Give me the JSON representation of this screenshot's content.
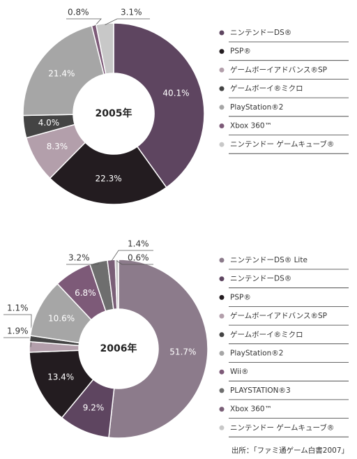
{
  "chart_data": [
    {
      "type": "pie",
      "title": "2005年",
      "categories": [
        "ニンテンドーDS®",
        "PSP®",
        "ゲームボーイアドバンス®SP",
        "ゲームボーイ®ミクロ",
        "PlayStation®2",
        "Xbox 360™",
        "ニンテンドー ゲームキューブ®"
      ],
      "values": [
        40.1,
        22.3,
        8.3,
        4.0,
        21.4,
        0.8,
        3.1
      ],
      "value_labels": [
        "40.1%",
        "22.3%",
        "8.3%",
        "4.0%",
        "21.4%",
        "0.8%",
        "3.1%"
      ],
      "colors": [
        "#5e4560",
        "#231c20",
        "#b39fab",
        "#444444",
        "#a6a6a6",
        "#7d5a78",
        "#c8c8c8"
      ]
    },
    {
      "type": "pie",
      "title": "2006年",
      "categories": [
        "ニンテンドーDS® Lite",
        "ニンテンドーDS®",
        "PSP®",
        "ゲームボーイアドバンス®SP",
        "ゲームボーイ®ミクロ",
        "PlayStation®2",
        "Wii®",
        "PLAYSTATION®3",
        "Xbox 360™",
        "ニンテンドー ゲームキューブ®"
      ],
      "values": [
        51.7,
        9.2,
        13.4,
        1.9,
        1.1,
        10.6,
        6.8,
        3.2,
        1.4,
        0.6
      ],
      "value_labels": [
        "51.7%",
        "9.2%",
        "13.4%",
        "1.9%",
        "1.1%",
        "10.6%",
        "6.8%",
        "3.2%",
        "1.4%",
        "0.6%"
      ],
      "colors": [
        "#8c7b8b",
        "#5e4560",
        "#231c20",
        "#b39fab",
        "#444444",
        "#a6a6a6",
        "#7d5a78",
        "#6e6e6e",
        "#7a5f77",
        "#c8c8c8"
      ]
    }
  ],
  "source": "出所：「ファミ通ゲーム白書2007」"
}
